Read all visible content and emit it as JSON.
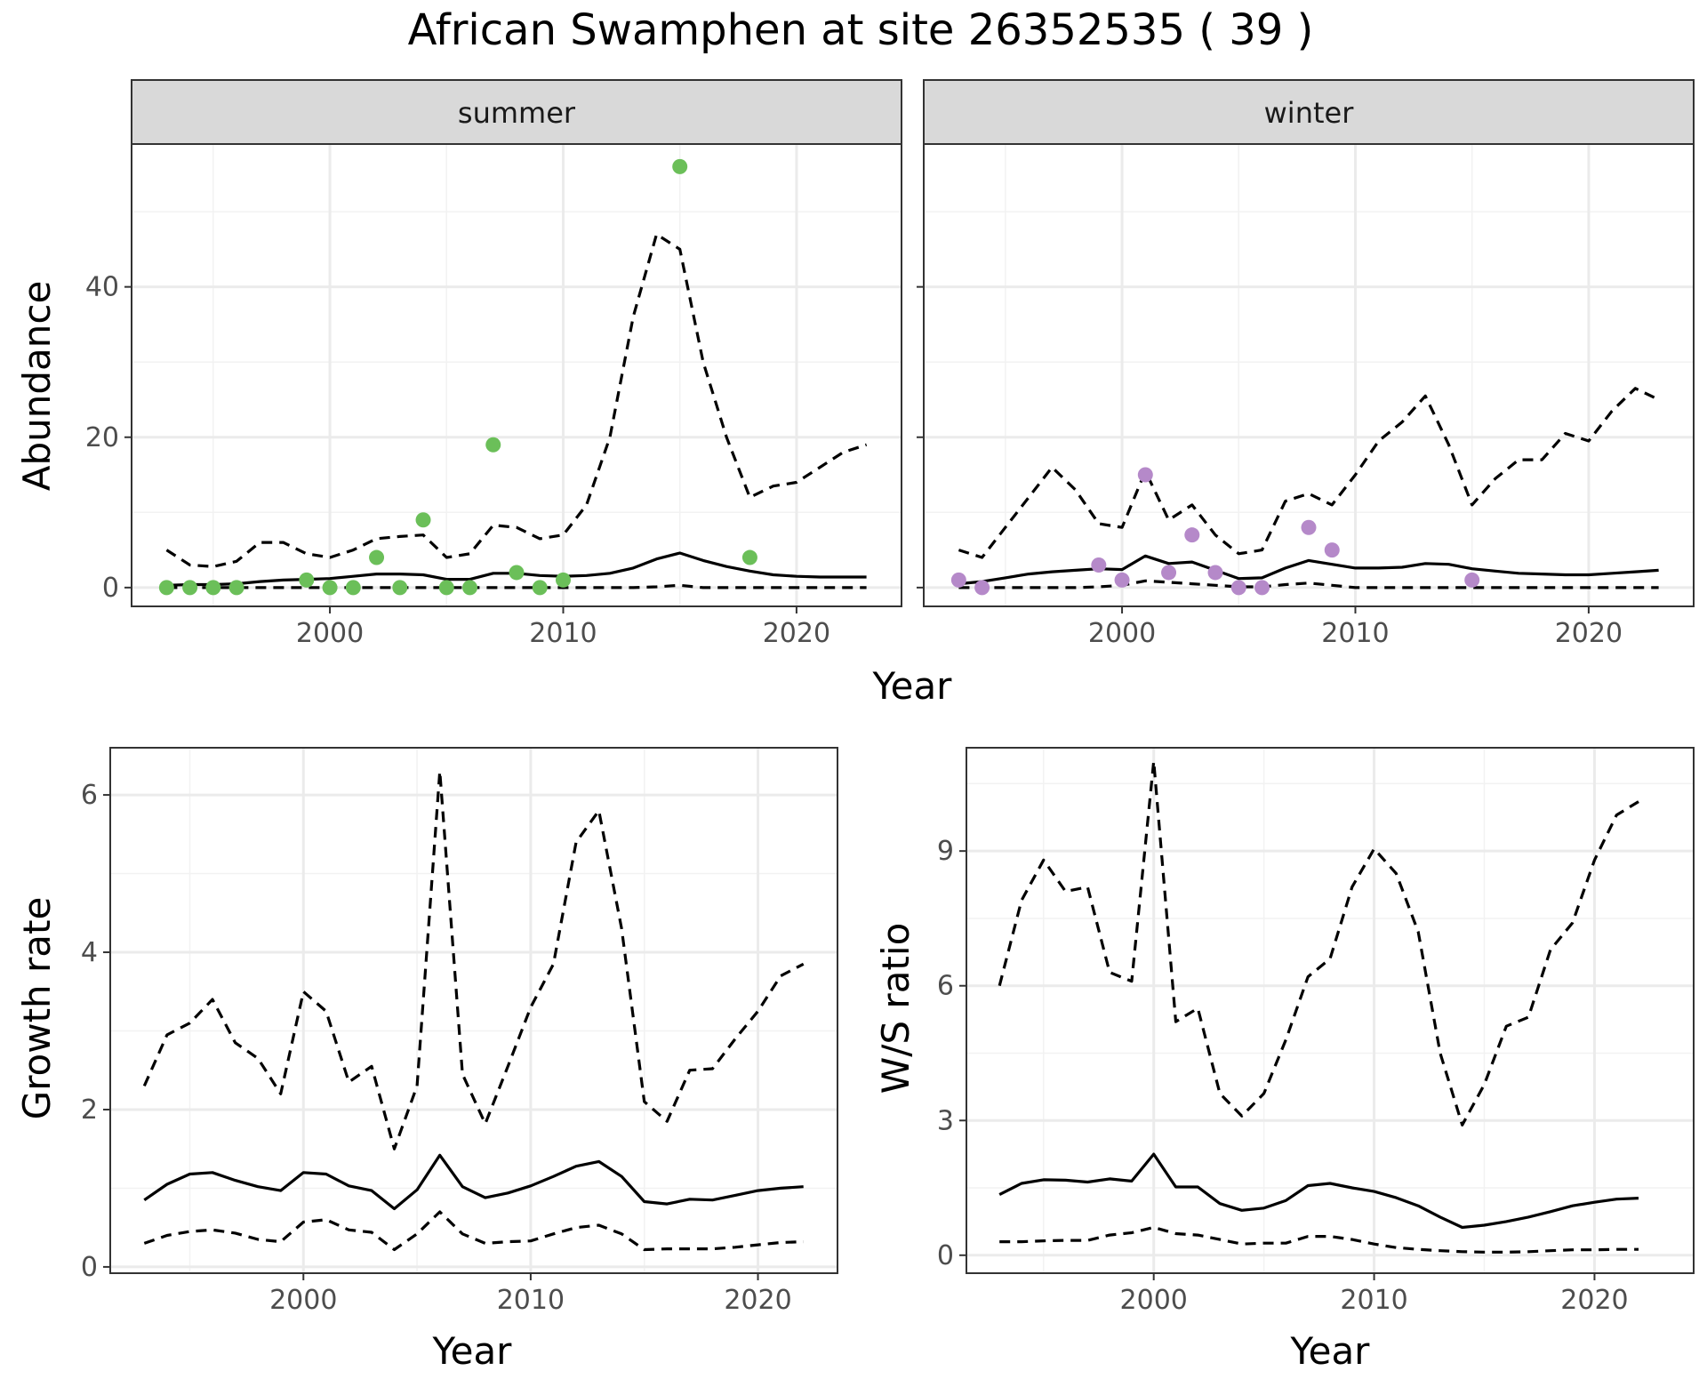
{
  "title": "African Swamphen at site 26352535 ( 39 )",
  "colors": {
    "summer_points": "#6BBF59",
    "winter_points": "#B589C9",
    "line": "#000000",
    "strip_bg": "#D9D9D9",
    "grid_major": "#EBEBEB",
    "grid_minor": "#F2F2F2"
  },
  "chart_data": [
    {
      "type": "line",
      "facet": "summer",
      "xlabel": "Year",
      "ylabel": "Abundance",
      "xlim": [
        1991.5,
        2024.5
      ],
      "ylim": [
        -2.5,
        59
      ],
      "xticks": [
        2000,
        2010,
        2020
      ],
      "yticks": [
        0,
        20,
        40
      ],
      "grid": true,
      "x": [
        1993,
        1994,
        1995,
        1996,
        1997,
        1998,
        1999,
        2000,
        2001,
        2002,
        2003,
        2004,
        2005,
        2006,
        2007,
        2008,
        2009,
        2010,
        2011,
        2012,
        2013,
        2014,
        2015,
        2016,
        2017,
        2018,
        2019,
        2020,
        2021,
        2022,
        2023
      ],
      "series": [
        {
          "style": "solid",
          "values": [
            0.3,
            0.4,
            0.4,
            0.5,
            0.8,
            1.0,
            1.1,
            1.2,
            1.5,
            1.8,
            1.8,
            1.7,
            1.1,
            1.1,
            1.9,
            1.9,
            1.6,
            1.5,
            1.6,
            1.9,
            2.6,
            3.8,
            4.6,
            3.6,
            2.8,
            2.2,
            1.7,
            1.5,
            1.4,
            1.4,
            1.4
          ]
        },
        {
          "style": "dashed",
          "values": [
            5,
            3,
            2.8,
            3.5,
            6,
            6,
            4.5,
            4,
            5,
            6.5,
            6.8,
            7,
            4,
            4.5,
            8.3,
            8,
            6.5,
            7,
            11,
            20,
            36,
            47,
            45,
            30,
            20,
            12,
            13.5,
            14,
            16,
            18,
            19
          ]
        },
        {
          "style": "dashed",
          "values": [
            0,
            0,
            0,
            0,
            0,
            0,
            0,
            0,
            0,
            0,
            0,
            0,
            0,
            0,
            0,
            0,
            0,
            0,
            0,
            0,
            0,
            0.1,
            0.3,
            0,
            0,
            0,
            0,
            0,
            0,
            0,
            0
          ]
        }
      ],
      "points": [
        {
          "x": 1993,
          "y": 0
        },
        {
          "x": 1994,
          "y": 0
        },
        {
          "x": 1995,
          "y": 0
        },
        {
          "x": 1996,
          "y": 0
        },
        {
          "x": 1999,
          "y": 1
        },
        {
          "x": 2000,
          "y": 0
        },
        {
          "x": 2001,
          "y": 0
        },
        {
          "x": 2002,
          "y": 4
        },
        {
          "x": 2003,
          "y": 0
        },
        {
          "x": 2004,
          "y": 9
        },
        {
          "x": 2005,
          "y": 0
        },
        {
          "x": 2006,
          "y": 0
        },
        {
          "x": 2007,
          "y": 19
        },
        {
          "x": 2008,
          "y": 2
        },
        {
          "x": 2009,
          "y": 0
        },
        {
          "x": 2010,
          "y": 1
        },
        {
          "x": 2015,
          "y": 56
        },
        {
          "x": 2018,
          "y": 4
        }
      ]
    },
    {
      "type": "line",
      "facet": "winter",
      "xlabel": "Year",
      "ylabel": "Abundance",
      "xlim": [
        1991.5,
        2024.5
      ],
      "ylim": [
        -2.5,
        59
      ],
      "xticks": [
        2000,
        2010,
        2020
      ],
      "yticks": [
        0,
        20,
        40
      ],
      "grid": true,
      "x": [
        1993,
        1994,
        1995,
        1996,
        1997,
        1998,
        1999,
        2000,
        2001,
        2002,
        2003,
        2004,
        2005,
        2006,
        2007,
        2008,
        2009,
        2010,
        2011,
        2012,
        2013,
        2014,
        2015,
        2016,
        2017,
        2018,
        2019,
        2020,
        2021,
        2022,
        2023
      ],
      "series": [
        {
          "style": "solid",
          "values": [
            0.5,
            0.8,
            1.3,
            1.8,
            2.1,
            2.3,
            2.5,
            2.4,
            4.2,
            3.2,
            3.4,
            2.3,
            1.2,
            1.3,
            2.6,
            3.6,
            3.1,
            2.6,
            2.6,
            2.7,
            3.2,
            3.1,
            2.5,
            2.2,
            1.9,
            1.8,
            1.7,
            1.7,
            1.9,
            2.1,
            2.3
          ]
        },
        {
          "style": "dashed",
          "values": [
            5,
            4,
            8,
            12,
            16,
            13,
            8.5,
            8,
            15.5,
            9,
            11,
            7,
            4.5,
            5,
            11.5,
            12.5,
            11,
            15,
            19.5,
            22,
            25.5,
            19,
            11,
            14.5,
            17,
            17,
            20.5,
            19.5,
            23.5,
            26.5,
            25
          ]
        },
        {
          "style": "dashed",
          "values": [
            0,
            0,
            0,
            0,
            0,
            0,
            0.1,
            0.3,
            0.9,
            0.7,
            0.5,
            0.3,
            0.1,
            0.1,
            0.4,
            0.6,
            0.3,
            0,
            0,
            0,
            0,
            0,
            0,
            0,
            0,
            0,
            0,
            0,
            0,
            0,
            0
          ]
        }
      ],
      "points": [
        {
          "x": 1993,
          "y": 1
        },
        {
          "x": 1994,
          "y": 0
        },
        {
          "x": 1999,
          "y": 3
        },
        {
          "x": 2000,
          "y": 1
        },
        {
          "x": 2001,
          "y": 15
        },
        {
          "x": 2002,
          "y": 2
        },
        {
          "x": 2003,
          "y": 7
        },
        {
          "x": 2004,
          "y": 2
        },
        {
          "x": 2005,
          "y": 0
        },
        {
          "x": 2006,
          "y": 0
        },
        {
          "x": 2008,
          "y": 8
        },
        {
          "x": 2009,
          "y": 5
        },
        {
          "x": 2015,
          "y": 1
        }
      ]
    },
    {
      "type": "line",
      "xlabel": "Year",
      "ylabel": "Growth rate",
      "xlim": [
        1991.5,
        2023.5
      ],
      "ylim": [
        -0.08,
        6.6
      ],
      "xticks": [
        2000,
        2010,
        2020
      ],
      "yticks": [
        0,
        2,
        4,
        6
      ],
      "grid": true,
      "x": [
        1993,
        1994,
        1995,
        1996,
        1997,
        1998,
        1999,
        2000,
        2001,
        2002,
        2003,
        2004,
        2005,
        2006,
        2007,
        2008,
        2009,
        2010,
        2011,
        2012,
        2013,
        2014,
        2015,
        2016,
        2017,
        2018,
        2019,
        2020,
        2021,
        2022
      ],
      "series": [
        {
          "style": "solid",
          "values": [
            0.85,
            1.05,
            1.18,
            1.2,
            1.1,
            1.02,
            0.97,
            1.2,
            1.18,
            1.03,
            0.97,
            0.74,
            0.98,
            1.42,
            1.02,
            0.88,
            0.94,
            1.03,
            1.15,
            1.28,
            1.34,
            1.15,
            0.83,
            0.8,
            0.86,
            0.85,
            0.91,
            0.97,
            1.0,
            1.02
          ]
        },
        {
          "style": "dashed",
          "values": [
            2.3,
            2.95,
            3.1,
            3.4,
            2.85,
            2.65,
            2.2,
            3.5,
            3.25,
            2.35,
            2.55,
            1.5,
            2.3,
            6.3,
            2.45,
            1.82,
            2.55,
            3.3,
            3.85,
            5.4,
            5.8,
            4.3,
            2.1,
            1.85,
            2.5,
            2.52,
            2.9,
            3.25,
            3.7,
            3.85
          ]
        },
        {
          "style": "dashed",
          "values": [
            0.3,
            0.4,
            0.45,
            0.47,
            0.43,
            0.35,
            0.32,
            0.57,
            0.6,
            0.47,
            0.44,
            0.22,
            0.42,
            0.7,
            0.42,
            0.3,
            0.32,
            0.33,
            0.42,
            0.5,
            0.53,
            0.42,
            0.22,
            0.23,
            0.23,
            0.23,
            0.25,
            0.28,
            0.31,
            0.32
          ]
        }
      ]
    },
    {
      "type": "line",
      "xlabel": "Year",
      "ylabel": "W/S ratio",
      "xlim": [
        1991.5,
        2024.5
      ],
      "ylim": [
        -0.4,
        11.3
      ],
      "xticks": [
        2000,
        2010,
        2020
      ],
      "yticks": [
        0,
        3,
        6,
        9
      ],
      "grid": true,
      "x": [
        1993,
        1994,
        1995,
        1996,
        1997,
        1998,
        1999,
        2000,
        2001,
        2002,
        2003,
        2004,
        2005,
        2006,
        2007,
        2008,
        2009,
        2010,
        2011,
        2012,
        2013,
        2014,
        2015,
        2016,
        2017,
        2018,
        2019,
        2020,
        2021,
        2022
      ],
      "series": [
        {
          "style": "solid",
          "values": [
            1.35,
            1.6,
            1.68,
            1.67,
            1.63,
            1.7,
            1.65,
            2.25,
            1.52,
            1.52,
            1.15,
            1.0,
            1.05,
            1.22,
            1.55,
            1.6,
            1.5,
            1.42,
            1.28,
            1.1,
            0.85,
            0.62,
            0.67,
            0.75,
            0.85,
            0.97,
            1.1,
            1.18,
            1.25,
            1.27
          ]
        },
        {
          "style": "dashed",
          "values": [
            6.0,
            7.9,
            8.8,
            8.1,
            8.2,
            6.3,
            6.1,
            11.0,
            5.2,
            5.5,
            3.6,
            3.1,
            3.6,
            4.8,
            6.2,
            6.6,
            8.2,
            9.05,
            8.5,
            7.2,
            4.5,
            2.9,
            3.8,
            5.1,
            5.3,
            6.8,
            7.4,
            8.8,
            9.8,
            10.1
          ]
        },
        {
          "style": "dashed",
          "values": [
            0.3,
            0.3,
            0.32,
            0.33,
            0.33,
            0.45,
            0.5,
            0.62,
            0.48,
            0.45,
            0.35,
            0.25,
            0.27,
            0.27,
            0.42,
            0.42,
            0.35,
            0.25,
            0.17,
            0.13,
            0.1,
            0.08,
            0.07,
            0.07,
            0.08,
            0.1,
            0.12,
            0.12,
            0.13,
            0.13
          ]
        }
      ]
    }
  ]
}
